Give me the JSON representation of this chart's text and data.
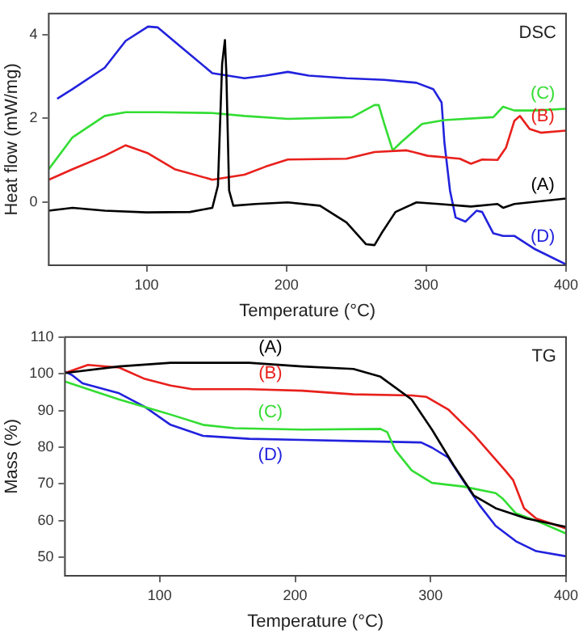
{
  "chart_data": [
    {
      "type": "line",
      "xlabel": "Temperature (°C)",
      "ylabel": "Heat flow (mW/mg)",
      "xlim": [
        30,
        400
      ],
      "ylim": [
        -1.5,
        4.5
      ],
      "xticks": [
        100,
        200,
        300,
        400
      ],
      "yticks": [
        0,
        2,
        4
      ],
      "grid": false,
      "legend": false,
      "annotations": [
        "DSC"
      ],
      "series": [
        {
          "name": "(A)",
          "color": "#000000",
          "x": [
            30,
            47,
            70,
            100,
            131,
            147,
            151,
            154,
            156,
            157,
            159,
            162,
            178,
            201,
            224,
            243,
            257,
            263,
            268,
            278,
            293,
            309,
            332,
            351,
            355,
            363,
            400
          ],
          "values": [
            -0.2,
            -0.13,
            -0.2,
            -0.24,
            -0.23,
            -0.13,
            0.4,
            3.3,
            3.87,
            3.1,
            0.28,
            -0.08,
            -0.04,
            0,
            -0.08,
            -0.48,
            -1.0,
            -1.02,
            -0.74,
            -0.23,
            0,
            -0.04,
            -0.1,
            -0.04,
            -0.13,
            -0.04,
            0.09
          ]
        },
        {
          "name": "(B)",
          "color": "#e8201c",
          "x": [
            30,
            47,
            70,
            85,
            101,
            120,
            147,
            170,
            185,
            201,
            243,
            263,
            286,
            301,
            324,
            332,
            340,
            351,
            357,
            363,
            367,
            374,
            382,
            400
          ],
          "values": [
            0.54,
            0.79,
            1.11,
            1.36,
            1.17,
            0.79,
            0.54,
            0.66,
            0.85,
            1.02,
            1.04,
            1.2,
            1.24,
            1.11,
            1.04,
            0.92,
            1.02,
            1.01,
            1.3,
            1.94,
            2.06,
            1.75,
            1.66,
            1.71
          ]
        },
        {
          "name": "(C)",
          "color": "#33dd33",
          "x": [
            30,
            47,
            70,
            85,
            108,
            147,
            170,
            201,
            247,
            263,
            266,
            270,
            276,
            282,
            297,
            313,
            348,
            355,
            363,
            378,
            400
          ],
          "values": [
            0.79,
            1.55,
            2.06,
            2.15,
            2.15,
            2.13,
            2.06,
            1.99,
            2.03,
            2.32,
            2.32,
            1.87,
            1.24,
            1.43,
            1.87,
            1.96,
            2.03,
            2.28,
            2.19,
            2.19,
            2.23
          ]
        },
        {
          "name": "(D)",
          "color": "#2222dd",
          "x": [
            36,
            47,
            70,
            85,
            101,
            108,
            124,
            147,
            170,
            185,
            201,
            216,
            243,
            270,
            293,
            305,
            311,
            313,
            317,
            321,
            328,
            336,
            340,
            348,
            355,
            363,
            378,
            400
          ],
          "values": [
            2.47,
            2.7,
            3.21,
            3.85,
            4.19,
            4.17,
            3.72,
            3.08,
            2.96,
            3.02,
            3.11,
            3.02,
            2.96,
            2.92,
            2.85,
            2.7,
            2.38,
            1.43,
            0.28,
            -0.36,
            -0.46,
            -0.2,
            -0.23,
            -0.74,
            -0.8,
            -0.8,
            -1.12,
            -1.48
          ]
        }
      ]
    },
    {
      "type": "line",
      "xlabel": "Temperature (°C)",
      "ylabel": "Mass (%)",
      "xlim": [
        30,
        400
      ],
      "ylim": [
        45,
        110
      ],
      "xticks": [
        100,
        200,
        300,
        400
      ],
      "yticks": [
        50,
        60,
        70,
        80,
        90,
        100,
        110
      ],
      "grid": false,
      "legend": false,
      "annotations": [
        "TG"
      ],
      "series": [
        {
          "name": "(A)",
          "color": "#000000",
          "x": [
            30,
            70,
            108,
            166,
            205,
            243,
            263,
            286,
            301,
            317,
            332,
            348,
            371,
            400
          ],
          "values": [
            100.2,
            102,
            103,
            103,
            102,
            101.3,
            99.2,
            93,
            84.8,
            75.1,
            66.8,
            63.4,
            60.6,
            58.3
          ]
        },
        {
          "name": "(B)",
          "color": "#e8201c",
          "x": [
            30,
            47,
            70,
            89,
            108,
            124,
            166,
            205,
            243,
            286,
            297,
            313,
            332,
            355,
            361,
            369,
            378,
            400
          ],
          "values": [
            100.2,
            102.4,
            101.7,
            98.6,
            96.8,
            95.8,
            95.8,
            95.4,
            94.4,
            94.1,
            93.7,
            90.3,
            83.4,
            73.7,
            71,
            63.4,
            60.6,
            57.9
          ]
        },
        {
          "name": "(C)",
          "color": "#33dd33",
          "x": [
            30,
            47,
            70,
            108,
            132,
            155,
            205,
            263,
            268,
            274,
            286,
            301,
            324,
            348,
            353,
            363,
            378,
            400
          ],
          "values": [
            97.9,
            95.8,
            93,
            88.9,
            86.1,
            85.2,
            84.8,
            85,
            84.1,
            79.2,
            73.7,
            70.3,
            69.3,
            67.5,
            66.1,
            62,
            60,
            56.5
          ]
        },
        {
          "name": "(D)",
          "color": "#2222dd",
          "x": [
            30,
            35,
            43,
            70,
            89,
            108,
            132,
            166,
            205,
            243,
            293,
            301,
            313,
            324,
            336,
            348,
            363,
            378,
            400
          ],
          "values": [
            100.6,
            99.7,
            97.4,
            94.7,
            91,
            86.1,
            83.1,
            82.3,
            82,
            81.7,
            81.3,
            79.9,
            77.2,
            71,
            64.3,
            58.6,
            54.4,
            51.7,
            50.3
          ]
        }
      ]
    }
  ]
}
